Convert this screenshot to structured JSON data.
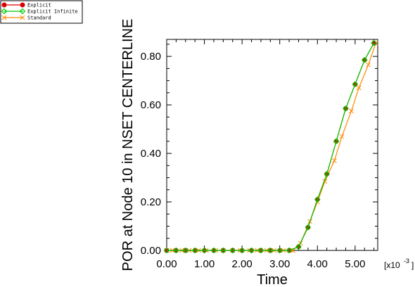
{
  "chart_data": {
    "type": "line",
    "title": "",
    "xlabel": "Time",
    "ylabel": "POR at Node 10 in NSET CENTERLINE",
    "x_multiplier_label": "[x10",
    "x_multiplier_exp": "-3",
    "x_multiplier_close": "]",
    "xlim": [
      0,
      5.6
    ],
    "ylim": [
      0,
      0.87
    ],
    "x_ticks": [
      0,
      1,
      2,
      3,
      4,
      5
    ],
    "x_tick_labels": [
      "0.00",
      "1.00",
      "2.00",
      "3.00",
      "4.00",
      "5.00"
    ],
    "y_ticks": [
      0,
      0.2,
      0.4,
      0.6,
      0.8
    ],
    "y_tick_labels": [
      "0.00",
      "0.20",
      "0.40",
      "0.60",
      "0.80"
    ],
    "grid": false,
    "legend_position": "top-left",
    "series": [
      {
        "name": "Explicit",
        "color": "#dd0000",
        "marker": "circle",
        "x": [
          0.0,
          0.25,
          0.5,
          0.75,
          1.0,
          1.25,
          1.5,
          1.75,
          2.0,
          2.25,
          2.5,
          2.75,
          3.0,
          3.25,
          3.5,
          3.75,
          4.0,
          4.25,
          4.5,
          4.75,
          5.0,
          5.25,
          5.5
        ],
        "y": [
          0,
          0,
          0,
          0,
          0,
          0,
          0,
          0,
          0,
          0,
          0,
          0,
          0,
          0,
          0.015,
          0.095,
          0.21,
          0.315,
          0.45,
          0.585,
          0.685,
          0.785,
          0.855
        ]
      },
      {
        "name": "Explicit Infinite",
        "color": "#00cc00",
        "marker": "diamond",
        "x": [
          0.0,
          0.25,
          0.5,
          0.75,
          1.0,
          1.25,
          1.5,
          1.75,
          2.0,
          2.25,
          2.5,
          2.75,
          3.0,
          3.25,
          3.5,
          3.75,
          4.0,
          4.25,
          4.5,
          4.75,
          5.0,
          5.25,
          5.5
        ],
        "y": [
          0,
          0,
          0,
          0,
          0,
          0,
          0,
          0,
          0,
          0,
          0,
          0,
          0,
          0,
          0.015,
          0.095,
          0.21,
          0.315,
          0.45,
          0.585,
          0.685,
          0.785,
          0.855
        ]
      },
      {
        "name": "Standard",
        "color": "#ff8800",
        "marker": "x",
        "x": [
          0.0,
          0.15,
          0.4,
          0.6,
          0.85,
          1.05,
          1.3,
          1.5,
          1.75,
          1.95,
          2.2,
          2.4,
          2.65,
          2.85,
          3.1,
          3.3,
          3.35,
          3.55,
          3.8,
          4.0,
          4.2,
          4.45,
          4.65,
          4.9,
          5.1,
          5.35,
          5.55
        ],
        "y": [
          0,
          0,
          0,
          0,
          0,
          0,
          0,
          0,
          0,
          0,
          0,
          0,
          0,
          0,
          0,
          0,
          0,
          0.03,
          0.12,
          0.2,
          0.285,
          0.37,
          0.47,
          0.575,
          0.67,
          0.765,
          0.855
        ]
      }
    ]
  }
}
